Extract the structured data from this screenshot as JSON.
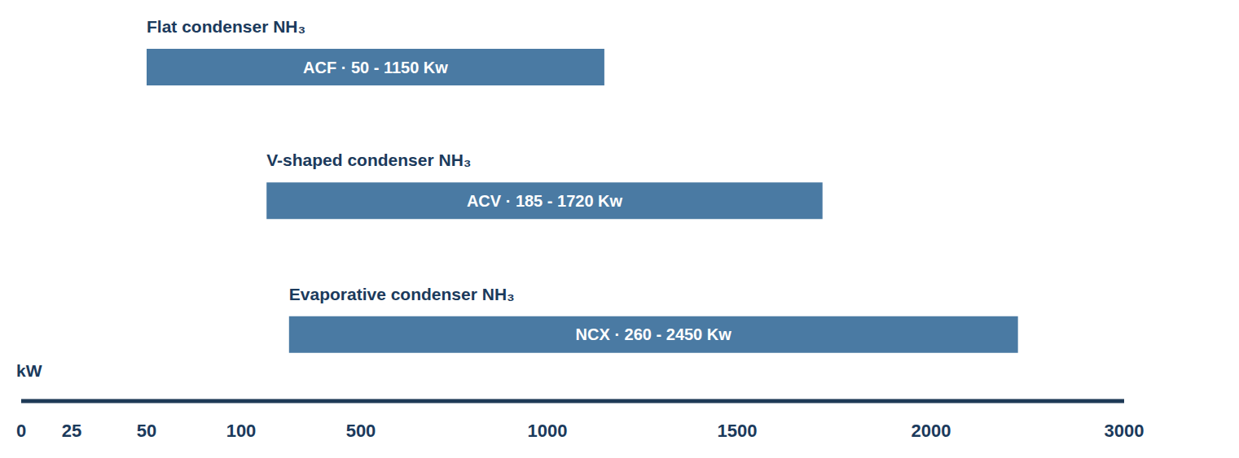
{
  "chart_data": {
    "type": "range_bar",
    "orientation": "horizontal",
    "categories": [
      "Flat condenser NH₃",
      "V-shaped condenser NH₃",
      "Evaporative condenser NH₃"
    ],
    "values": [
      [
        50,
        1150
      ],
      [
        185,
        1720
      ],
      [
        260,
        2450
      ]
    ],
    "value_labels": [
      "ACF · 50 - 1150 Kw",
      "ACV · 185 - 1720 Kw",
      "NCX · 260 - 2450 Kw"
    ],
    "color": "#4a7aa3",
    "xlabel": "kW",
    "xlim": [
      0,
      3000
    ],
    "xticks": [
      0,
      25,
      50,
      100,
      500,
      1000,
      1500,
      2000,
      3000
    ],
    "data_labels": true,
    "grid": false,
    "tick_labels": "x"
  }
}
